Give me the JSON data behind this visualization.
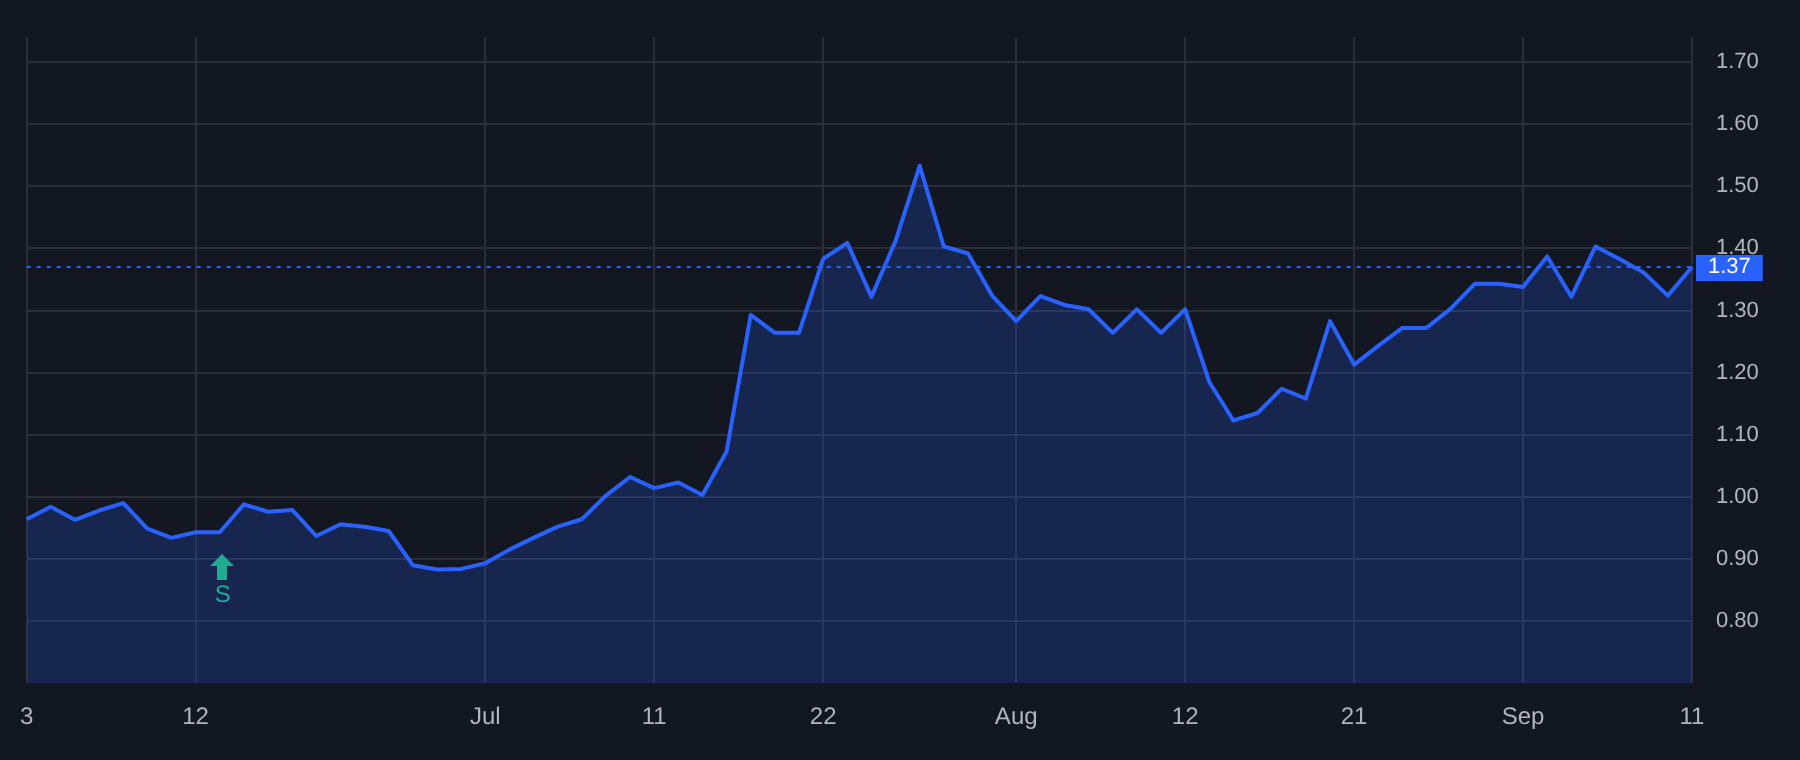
{
  "chart_data": {
    "type": "area",
    "categories": [
      "3",
      null,
      null,
      null,
      null,
      null,
      null,
      "12",
      null,
      null,
      null,
      null,
      null,
      null,
      null,
      null,
      null,
      null,
      null,
      "Jul",
      null,
      null,
      null,
      null,
      null,
      null,
      "11",
      null,
      null,
      null,
      null,
      null,
      null,
      "22",
      null,
      null,
      null,
      null,
      null,
      null,
      null,
      "Aug",
      null,
      null,
      null,
      null,
      null,
      null,
      "12",
      null,
      null,
      null,
      null,
      null,
      null,
      "21",
      null,
      null,
      null,
      null,
      null,
      null,
      "Sep",
      null,
      null,
      null,
      null,
      null,
      null,
      "11"
    ],
    "series": [
      {
        "color": "#2962ff",
        "values": [
          0.964,
          0.984,
          0.963,
          0.978,
          0.99,
          0.949,
          0.934,
          0.943,
          0.943,
          0.988,
          0.976,
          0.979,
          0.937,
          0.956,
          0.952,
          0.945,
          0.89,
          0.883,
          0.884,
          0.893,
          0.915,
          0.934,
          0.952,
          0.964,
          1.002,
          1.032,
          1.014,
          1.023,
          1.003,
          1.073,
          1.293,
          1.264,
          1.264,
          1.383,
          1.409,
          1.322,
          1.412,
          1.533,
          1.403,
          1.392,
          1.324,
          1.283,
          1.323,
          1.309,
          1.302,
          1.264,
          1.302,
          1.264,
          1.302,
          1.185,
          1.123,
          1.135,
          1.174,
          1.158,
          1.283,
          1.213,
          1.243,
          1.272,
          1.272,
          1.303,
          1.343,
          1.343,
          1.338,
          1.387,
          1.322,
          1.403,
          1.383,
          1.361,
          1.324,
          1.37
        ]
      }
    ],
    "ylim": [
      0.7,
      1.74
    ],
    "yticks": [
      {
        "value": 0.8,
        "label": "0.80"
      },
      {
        "value": 0.9,
        "label": "0.90"
      },
      {
        "value": 1.0,
        "label": "1.00"
      },
      {
        "value": 1.1,
        "label": "1.10"
      },
      {
        "value": 1.2,
        "label": "1.20"
      },
      {
        "value": 1.3,
        "label": "1.30"
      },
      {
        "value": 1.4,
        "label": "1.40"
      },
      {
        "value": 1.5,
        "label": "1.50"
      },
      {
        "value": 1.6,
        "label": "1.60"
      },
      {
        "value": 1.7,
        "label": "1.70"
      }
    ],
    "ref_lines": [
      {
        "axis": "y",
        "value": 1.37,
        "label": "1.37",
        "color": "#2962ff",
        "line_style": "dotted"
      }
    ],
    "annotations": [
      "S"
    ],
    "grid": true,
    "legend": false,
    "marker": "none",
    "line_style": "solid"
  }
}
